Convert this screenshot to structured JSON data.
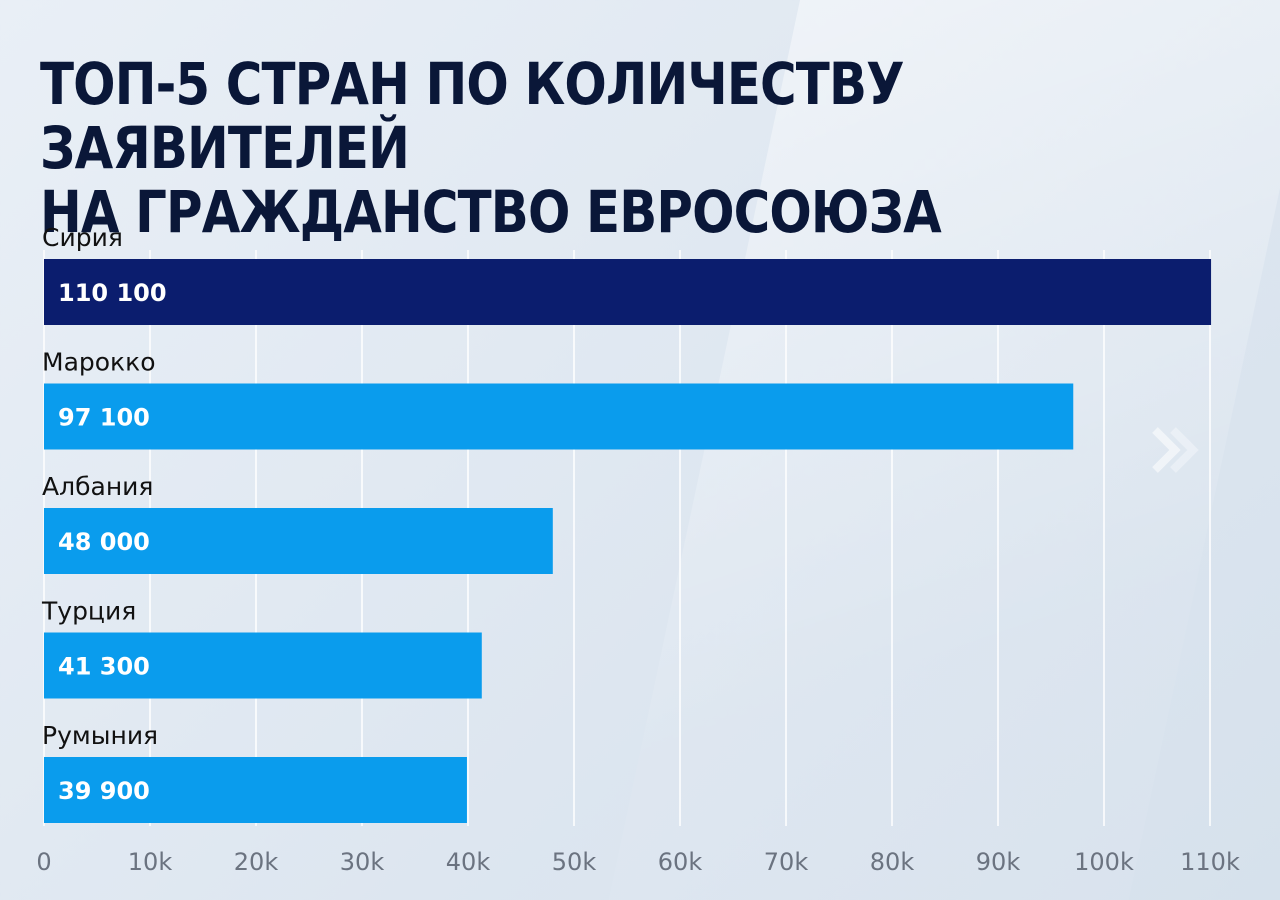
{
  "chart_data": {
    "type": "bar",
    "orientation": "horizontal",
    "title_lines": [
      "ТОП-5 СТРАН ПО КОЛИЧЕСТВУ ЗАЯВИТЕЛЕЙ",
      "НА ГРАЖДАНСТВО ЕВРОСОЮЗА"
    ],
    "categories": [
      "Сирия",
      "Марокко",
      "Албания",
      "Турция",
      "Румыния"
    ],
    "values": [
      110100,
      97100,
      48000,
      41300,
      39900
    ],
    "value_labels": [
      "110 100",
      "97 100",
      "48 000",
      "41 300",
      "39 900"
    ],
    "x_ticks": [
      "0",
      "10k",
      "20k",
      "30k",
      "40k",
      "50k",
      "60k",
      "70k",
      "80k",
      "90k",
      "100k",
      "110k"
    ],
    "xlim": [
      0,
      110000
    ],
    "grid": true,
    "colors": {
      "highlight": "#0b1d6e",
      "bar": "#0a9ced",
      "grid": "#ffffff",
      "tick_text": "#6b7380",
      "category_text": "#111111",
      "value_text": "#ffffff"
    }
  }
}
